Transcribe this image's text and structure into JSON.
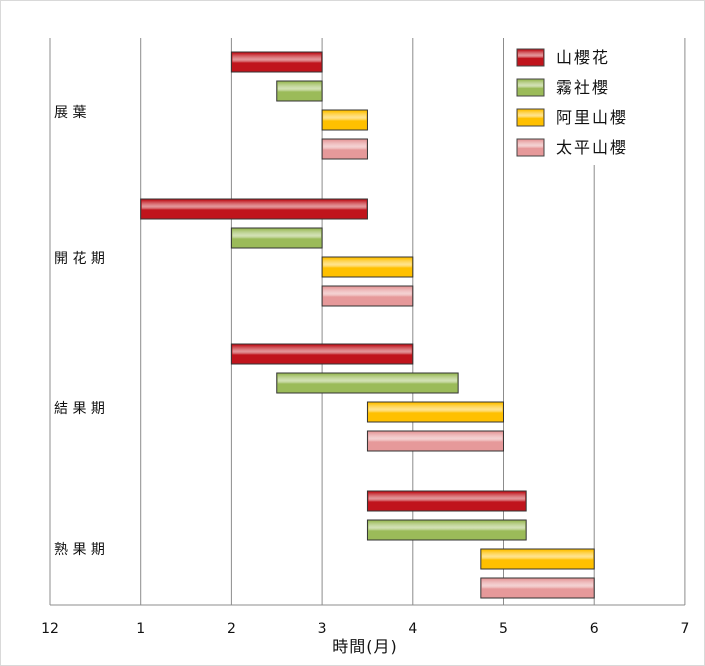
{
  "chart_data": {
    "type": "bar",
    "orientation": "horizontal-floating",
    "categories": [
      "展葉",
      "開花期",
      "結果期",
      "熟果期"
    ],
    "series": [
      {
        "name": "山櫻花",
        "color": "#c0141c",
        "ranges": [
          [
            2,
            3
          ],
          [
            1,
            3.5
          ],
          [
            2,
            4
          ],
          [
            3.5,
            5.25
          ]
        ]
      },
      {
        "name": "霧社櫻",
        "color": "#9bbb59",
        "ranges": [
          [
            2.5,
            3
          ],
          [
            2,
            3
          ],
          [
            2.5,
            4.5
          ],
          [
            3.5,
            5.25
          ]
        ]
      },
      {
        "name": "阿里山櫻",
        "color": "#ffc000",
        "ranges": [
          [
            3,
            3.5
          ],
          [
            3,
            4
          ],
          [
            3.5,
            5
          ],
          [
            4.75,
            6
          ]
        ]
      },
      {
        "name": "太平山櫻",
        "color": "#e6999a",
        "ranges": [
          [
            3,
            3.5
          ],
          [
            3,
            4
          ],
          [
            3.5,
            5
          ],
          [
            4.75,
            6
          ]
        ]
      }
    ],
    "x_ticks": [
      "12",
      "1",
      "2",
      "3",
      "4",
      "5",
      "6",
      "7"
    ],
    "xlim": [
      0,
      7
    ],
    "xlabel": "時間(月)",
    "ylabel": "",
    "title": "",
    "grid": "vertical",
    "legend_position": "top-right"
  }
}
